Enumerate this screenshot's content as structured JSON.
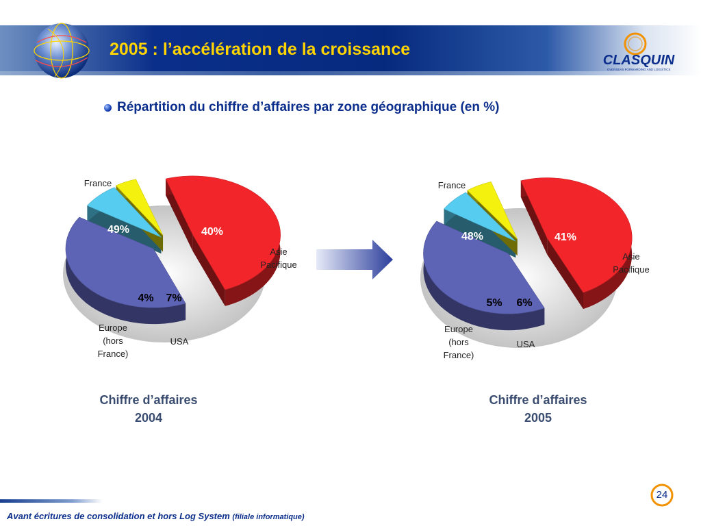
{
  "header": {
    "title": "2005 : l’accélération de la croissance",
    "logo_text": "CLASQUIN",
    "logo_tagline": "OVERSEAS FORWARDING AND LOGISTICS"
  },
  "subtitle": "Répartition du chiffre d’affaires par zone géographique (en %)",
  "chart_data": [
    {
      "type": "pie",
      "categories": [
        "France",
        "Asie Pacifique",
        "USA",
        "Europe (hors France)"
      ],
      "values": [
        49,
        40,
        7,
        4
      ],
      "value_labels": [
        "49%",
        "40%",
        "7%",
        "4%"
      ],
      "category_labels": [
        "France",
        "Asie\nPacifique",
        "USA",
        "Europe\n(hors\nFrance)"
      ],
      "caption": [
        "Chiffre d’affaires",
        "2004"
      ],
      "colors": [
        "#f2262a",
        "#5d63b5",
        "#56cdf0",
        "#f5f10e"
      ]
    },
    {
      "type": "pie",
      "categories": [
        "France",
        "Asie Pacifique",
        "USA",
        "Europe (hors France)"
      ],
      "values": [
        48,
        41,
        6,
        5
      ],
      "value_labels": [
        "48%",
        "41%",
        "6%",
        "5%"
      ],
      "category_labels": [
        "France",
        "Asie\nPacifique",
        "USA",
        "Europe\n(hors\nFrance)"
      ],
      "caption": [
        "Chiffre d’affaires",
        "2005"
      ],
      "colors": [
        "#f2262a",
        "#5d63b5",
        "#56cdf0",
        "#f5f10e"
      ]
    }
  ],
  "footer": {
    "note": "Avant écritures de consolidation et hors Log System",
    "note_small": "(filiale informatique)",
    "page_number": "24"
  }
}
